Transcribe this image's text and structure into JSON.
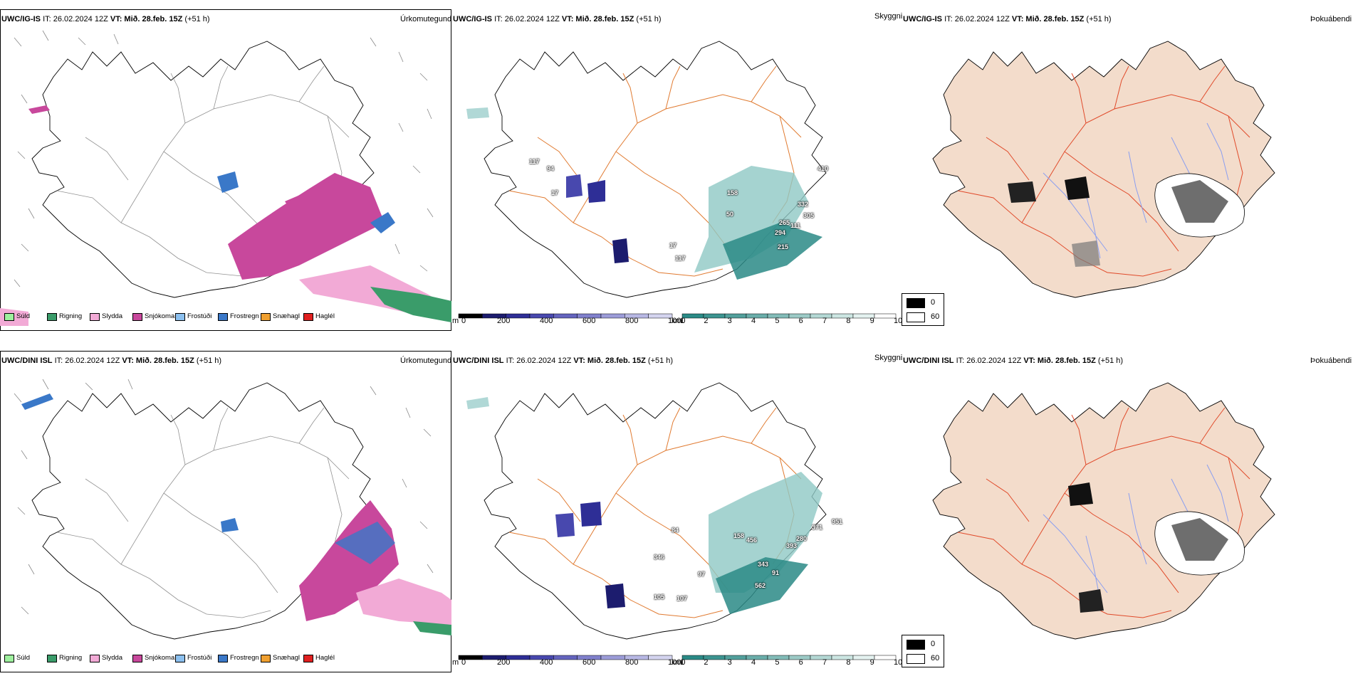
{
  "rows": [
    {
      "model": "UWC/IG-IS",
      "left": {
        "it": "IT: 26.02.2024 12Z",
        "vt_label": "VT:",
        "vt": "Mið. 28.feb. 15Z",
        "lead": "(+51 h)",
        "label": "Úrkomutegund"
      },
      "middle": {
        "it": "IT: 26.02.2024 12Z",
        "vt_label": "VT:",
        "vt": "Mið. 28.feb. 15Z",
        "lead": "(+51 h)",
        "label": "Skyggni"
      },
      "right": {
        "it": "IT: 26.02.2024 12Z",
        "vt_label": "VT:",
        "vt": "Mið. 28.feb. 15Z",
        "lead": "(+51 h)",
        "label": "Þokuábendi"
      },
      "snow_depth_values": [
        "117",
        "94",
        "17",
        "158",
        "50",
        "410",
        "332",
        "305",
        "265",
        "294",
        "111",
        "215",
        "117",
        "17"
      ],
      "visibility_values": []
    },
    {
      "model": "UWC/DINI ISL",
      "left": {
        "it": "IT: 26.02.2024 12Z",
        "vt_label": "VT:",
        "vt": "Mið. 28.feb. 15Z",
        "lead": "(+51 h)",
        "label": "Úrkomutegund"
      },
      "middle": {
        "it": "IT: 26.02.2024 12Z",
        "vt_label": "VT:",
        "vt": "Mið. 28.feb. 15Z",
        "lead": "(+51 h)",
        "label": "Skyggni"
      },
      "right": {
        "it": "IT: 26.02.2024 12Z",
        "vt_label": "VT:",
        "vt": "Mið. 28.feb. 15Z",
        "lead": "(+51 h)",
        "label": "Þokuábendi"
      },
      "snow_depth_values": [
        "84",
        "158",
        "346",
        "456",
        "371",
        "951",
        "280",
        "393",
        "343",
        "91",
        "562",
        "107",
        "105",
        "97"
      ],
      "visibility_values": []
    }
  ],
  "precip_legend": [
    {
      "label": "Súld",
      "color": "#9ef09e"
    },
    {
      "label": "Rigning",
      "color": "#3a9c6a"
    },
    {
      "label": "Slydda",
      "color": "#f2aad6"
    },
    {
      "label": "Snjókoma",
      "color": "#c8489c"
    },
    {
      "label": "Frostúði",
      "color": "#8cc0ef"
    },
    {
      "label": "Frostregn",
      "color": "#3a78c8"
    },
    {
      "label": "Snæhagl",
      "color": "#f0a030"
    },
    {
      "label": "Haglél",
      "color": "#e02020"
    }
  ],
  "snow_scale": {
    "unit": "m",
    "ticks": [
      "0",
      "200",
      "400",
      "600",
      "800",
      "1000"
    ],
    "colors": [
      "#000000",
      "#1c1c6e",
      "#2e2e96",
      "#4848ae",
      "#6464be",
      "#8080cc",
      "#9c9cd8",
      "#b8b8e4",
      "#d4d4ef"
    ]
  },
  "vis_scale": {
    "unit": "km",
    "ticks": [
      "1",
      "2",
      "3",
      "4",
      "5",
      "6",
      "7",
      "8",
      "9",
      "10"
    ],
    "colors": [
      "#2a8a86",
      "#3c9490",
      "#52a09c",
      "#6aaeaa",
      "#82bcb8",
      "#9ccac6",
      "#b4d8d4",
      "#cce6e2",
      "#e4f2f0",
      "#ffffff"
    ]
  },
  "fog_legend": [
    {
      "label": "0",
      "color": "#000000"
    },
    {
      "label": "60",
      "color": "#ffffff"
    }
  ],
  "colors": {
    "road": "#e07a30",
    "land": "#f3dccb",
    "river": "#8a9ef0",
    "road_red": "#e04a2a"
  }
}
